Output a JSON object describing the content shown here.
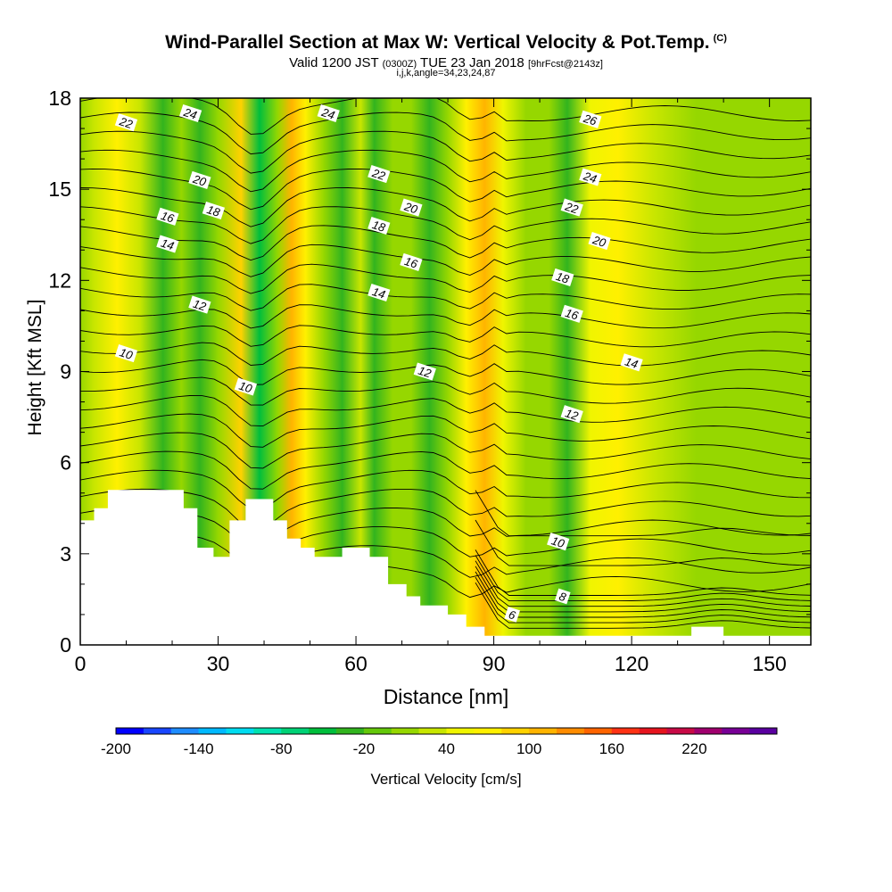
{
  "header": {
    "title": "Wind-Parallel Section at Max W: Vertical Velocity & Pot.Temp.",
    "copyright": "(C)",
    "valid_pre": "Valid 1200 JST ",
    "valid_z": "(0300Z)",
    "valid_date": " TUE 23 Jan 2018 ",
    "forecast": "[9hrFcst@2143z]",
    "params": "i,j,k,angle=34,23,24,87"
  },
  "chart_data": {
    "type": "heatmap",
    "title": "Wind-Parallel Section at Max W: Vertical Velocity & Pot.Temp.",
    "xlabel": "Distance [nm]",
    "ylabel": "Height [Kft MSL]",
    "xlim": [
      0,
      159
    ],
    "ylim": [
      0,
      18
    ],
    "x_ticks": [
      0,
      30,
      60,
      90,
      120,
      150
    ],
    "y_ticks": [
      0,
      3,
      6,
      9,
      12,
      15,
      18
    ],
    "colorbar": {
      "label": "Vertical Velocity [cm/s]",
      "tick_labels": [
        "-200",
        "-140",
        "-80",
        "-20",
        "40",
        "100",
        "160",
        "220"
      ],
      "colors": [
        "#0000ff",
        "#1946ff",
        "#1e8cff",
        "#00b9ff",
        "#00dcf0",
        "#00e2b0",
        "#00d276",
        "#00be3c",
        "#32b41e",
        "#64c80a",
        "#96d700",
        "#c8e600",
        "#f0f500",
        "#fff000",
        "#ffd200",
        "#ffb400",
        "#ff8c00",
        "#ff6400",
        "#ff3214",
        "#e6141e",
        "#c80a46",
        "#a0006e",
        "#780096",
        "#5a00a0"
      ]
    },
    "velocity_columns": [
      {
        "x": 0,
        "w": -20
      },
      {
        "x": 3,
        "w": 10
      },
      {
        "x": 8,
        "w": 40
      },
      {
        "x": 13,
        "w": 10
      },
      {
        "x": 18,
        "w": -50
      },
      {
        "x": 22,
        "w": -20
      },
      {
        "x": 26,
        "w": -50
      },
      {
        "x": 30,
        "w": -20
      },
      {
        "x": 35,
        "w": 60
      },
      {
        "x": 39,
        "w": -80
      },
      {
        "x": 43,
        "w": -20
      },
      {
        "x": 46,
        "w": 80
      },
      {
        "x": 49,
        "w": 50
      },
      {
        "x": 53,
        "w": -20
      },
      {
        "x": 57,
        "w": -50
      },
      {
        "x": 61,
        "w": 10
      },
      {
        "x": 64,
        "w": -50
      },
      {
        "x": 68,
        "w": -20
      },
      {
        "x": 72,
        "w": -20
      },
      {
        "x": 76,
        "w": -50
      },
      {
        "x": 80,
        "w": -20
      },
      {
        "x": 84,
        "w": 40
      },
      {
        "x": 88,
        "w": 90
      },
      {
        "x": 92,
        "w": 20
      },
      {
        "x": 97,
        "w": -10
      },
      {
        "x": 102,
        "w": -20
      },
      {
        "x": 106,
        "w": -50
      },
      {
        "x": 111,
        "w": 20
      },
      {
        "x": 117,
        "w": 40
      },
      {
        "x": 125,
        "w": 10
      },
      {
        "x": 134,
        "w": -10
      },
      {
        "x": 145,
        "w": -10
      },
      {
        "x": 159,
        "w": -10
      }
    ],
    "terrain": [
      [
        0,
        4.1
      ],
      [
        3,
        4.1
      ],
      [
        3,
        4.5
      ],
      [
        6,
        4.5
      ],
      [
        6,
        5.1
      ],
      [
        22.5,
        5.1
      ],
      [
        22.5,
        4.5
      ],
      [
        25.5,
        4.5
      ],
      [
        25.5,
        3.2
      ],
      [
        29,
        3.2
      ],
      [
        29,
        2.9
      ],
      [
        32.5,
        2.9
      ],
      [
        32.5,
        4.1
      ],
      [
        36,
        4.1
      ],
      [
        36,
        4.8
      ],
      [
        42,
        4.8
      ],
      [
        42,
        4.1
      ],
      [
        45,
        4.1
      ],
      [
        45,
        3.5
      ],
      [
        48,
        3.5
      ],
      [
        48,
        3.2
      ],
      [
        51,
        3.2
      ],
      [
        51,
        2.9
      ],
      [
        57,
        2.9
      ],
      [
        57,
        3.2
      ],
      [
        63,
        3.2
      ],
      [
        63,
        2.9
      ],
      [
        67,
        2.9
      ],
      [
        67,
        2.0
      ],
      [
        71,
        2.0
      ],
      [
        71,
        1.6
      ],
      [
        74,
        1.6
      ],
      [
        74,
        1.3
      ],
      [
        80,
        1.3
      ],
      [
        80,
        1.0
      ],
      [
        84,
        1.0
      ],
      [
        84,
        0.6
      ],
      [
        88,
        0.6
      ],
      [
        88,
        0.3
      ],
      [
        133,
        0.3
      ],
      [
        133,
        0.6
      ],
      [
        140,
        0.6
      ],
      [
        140,
        0.3
      ],
      [
        159,
        0.3
      ]
    ],
    "isentrope_labels": [
      {
        "x": 10,
        "y": 17.2,
        "label": "22"
      },
      {
        "x": 24,
        "y": 17.5,
        "label": "24"
      },
      {
        "x": 54,
        "y": 17.5,
        "label": "24"
      },
      {
        "x": 111,
        "y": 17.3,
        "label": "26"
      },
      {
        "x": 26,
        "y": 15.3,
        "label": "20"
      },
      {
        "x": 65,
        "y": 15.5,
        "label": "22"
      },
      {
        "x": 111,
        "y": 15.4,
        "label": "24"
      },
      {
        "x": 19,
        "y": 14.1,
        "label": "16"
      },
      {
        "x": 29,
        "y": 14.3,
        "label": "18"
      },
      {
        "x": 72,
        "y": 14.4,
        "label": "20"
      },
      {
        "x": 107,
        "y": 14.4,
        "label": "22"
      },
      {
        "x": 19,
        "y": 13.2,
        "label": "14"
      },
      {
        "x": 65,
        "y": 13.8,
        "label": "18"
      },
      {
        "x": 113,
        "y": 13.3,
        "label": "20"
      },
      {
        "x": 72,
        "y": 12.6,
        "label": "16"
      },
      {
        "x": 105,
        "y": 12.1,
        "label": "18"
      },
      {
        "x": 26,
        "y": 11.2,
        "label": "12"
      },
      {
        "x": 65,
        "y": 11.6,
        "label": "14"
      },
      {
        "x": 107,
        "y": 10.9,
        "label": "16"
      },
      {
        "x": 10,
        "y": 9.6,
        "label": "10"
      },
      {
        "x": 120,
        "y": 9.3,
        "label": "14"
      },
      {
        "x": 75,
        "y": 9.0,
        "label": "12"
      },
      {
        "x": 36,
        "y": 8.5,
        "label": "10"
      },
      {
        "x": 107,
        "y": 7.6,
        "label": "12"
      },
      {
        "x": 104,
        "y": 3.4,
        "label": "10"
      },
      {
        "x": 105,
        "y": 1.6,
        "label": "8"
      },
      {
        "x": 94,
        "y": 1.0,
        "label": "6"
      }
    ]
  }
}
